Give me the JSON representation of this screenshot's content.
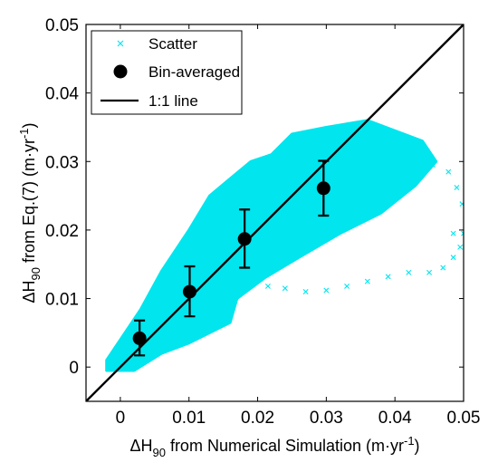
{
  "chart_data": {
    "type": "scatter",
    "xlabel": {
      "prefix": "ΔH",
      "sub": "90",
      "rest": " from Numerical Simulation (m·yr",
      "sup": "-1",
      "end": ")"
    },
    "ylabel": {
      "prefix": "ΔH",
      "sub": "90",
      "rest": " from Eq.(7) (m·yr",
      "sup": "-1",
      "end": ")"
    },
    "xlim": [
      -0.005,
      0.05
    ],
    "ylim": [
      -0.005,
      0.05
    ],
    "xticks": [
      "0",
      "0.01",
      "0.02",
      "0.03",
      "0.04",
      "0.05"
    ],
    "yticks": [
      "0",
      "0.01",
      "0.02",
      "0.03",
      "0.04",
      "0.05"
    ],
    "xtick_values": [
      0,
      0.01,
      0.02,
      0.03,
      0.04,
      0.05
    ],
    "ytick_values": [
      0,
      0.01,
      0.02,
      0.03,
      0.04,
      0.05
    ],
    "grid": false,
    "legend_position": "top-left",
    "legend": [
      "Scatter",
      "Bin-averaged",
      "1:1 line"
    ],
    "colors": {
      "scatter": "#00e5ee",
      "bin": "#000000",
      "line": "#000000"
    },
    "scatter_cloud_outline": [
      [
        -0.002,
        -0.0005
      ],
      [
        0.002,
        -0.0005
      ],
      [
        0.006,
        0.002
      ],
      [
        0.01,
        0.0035
      ],
      [
        0.016,
        0.0065
      ],
      [
        0.017,
        0.01
      ],
      [
        0.021,
        0.013
      ],
      [
        0.026,
        0.016
      ],
      [
        0.032,
        0.0195
      ],
      [
        0.038,
        0.0225
      ],
      [
        0.043,
        0.0265
      ],
      [
        0.046,
        0.03
      ],
      [
        0.044,
        0.033
      ],
      [
        0.036,
        0.036
      ],
      [
        0.03,
        0.035
      ],
      [
        0.025,
        0.034
      ],
      [
        0.022,
        0.031
      ],
      [
        0.019,
        0.03
      ],
      [
        0.016,
        0.0275
      ],
      [
        0.013,
        0.025
      ],
      [
        0.01,
        0.02
      ],
      [
        0.006,
        0.014
      ],
      [
        0.003,
        0.0085
      ],
      [
        0.0,
        0.004
      ],
      [
        -0.002,
        0.001
      ]
    ],
    "scatter_outliers": [
      [
        0.0215,
        0.0118
      ],
      [
        0.024,
        0.0115
      ],
      [
        0.027,
        0.011
      ],
      [
        0.03,
        0.0112
      ],
      [
        0.033,
        0.0118
      ],
      [
        0.036,
        0.0125
      ],
      [
        0.039,
        0.0132
      ],
      [
        0.042,
        0.0138
      ],
      [
        0.045,
        0.0138
      ],
      [
        0.047,
        0.0145
      ],
      [
        0.0485,
        0.016
      ],
      [
        0.0495,
        0.0175
      ],
      [
        0.05,
        0.0195
      ],
      [
        0.0503,
        0.0215
      ],
      [
        0.0498,
        0.0238
      ],
      [
        0.049,
        0.0262
      ],
      [
        0.0485,
        0.0195
      ],
      [
        0.0478,
        0.0285
      ],
      [
        0.0455,
        0.0295
      ]
    ],
    "bin_averaged": [
      {
        "x": 0.0028,
        "y": 0.0042,
        "yerr_low": 0.0017,
        "yerr_high": 0.0068
      },
      {
        "x": 0.0101,
        "y": 0.011,
        "yerr_low": 0.0074,
        "yerr_high": 0.0147
      },
      {
        "x": 0.0181,
        "y": 0.0187,
        "yerr_low": 0.0145,
        "yerr_high": 0.023
      },
      {
        "x": 0.0296,
        "y": 0.0261,
        "yerr_low": 0.0221,
        "yerr_high": 0.0301
      }
    ],
    "one_to_one_line": [
      [
        -0.005,
        -0.005
      ],
      [
        0.05,
        0.05
      ]
    ]
  }
}
